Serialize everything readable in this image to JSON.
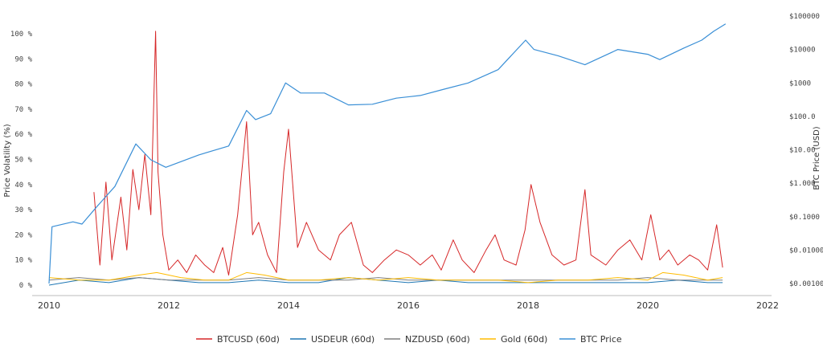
{
  "chart_data": {
    "type": "line",
    "title": "",
    "xlabel": "",
    "ylabel": "Price Volatility (%)",
    "y2label": "BTC Price (USD)",
    "xlim": [
      2010,
      2022
    ],
    "ylim": [
      0,
      100
    ],
    "y2lim": [
      0.001,
      100000
    ],
    "y2scale": "log",
    "x_ticks": [
      "2010",
      "2012",
      "2014",
      "2016",
      "2018",
      "2020",
      "2022"
    ],
    "y_ticks": [
      "0 %",
      "10 %",
      "20 %",
      "30 %",
      "40 %",
      "50 %",
      "60 %",
      "70 %",
      "80 %",
      "90 %",
      "100 %"
    ],
    "y2_ticks": [
      "$0.00100",
      "$0.01000",
      "$0.1000",
      "$1.000",
      "$10.00",
      "$100.0",
      "$1000",
      "$10000",
      "$100000"
    ],
    "legend_position": "bottom",
    "grid": false,
    "series": [
      {
        "name": "BTCUSD (60d)",
        "color": "#d62728",
        "axis": "left",
        "x": [
          2010.75,
          2010.85,
          2010.95,
          2011.05,
          2011.2,
          2011.3,
          2011.4,
          2011.5,
          2011.6,
          2011.7,
          2011.78,
          2011.82,
          2011.9,
          2012.0,
          2012.15,
          2012.3,
          2012.45,
          2012.6,
          2012.75,
          2012.9,
          2013.0,
          2013.15,
          2013.3,
          2013.4,
          2013.5,
          2013.65,
          2013.8,
          2013.92,
          2014.0,
          2014.15,
          2014.3,
          2014.5,
          2014.7,
          2014.85,
          2015.05,
          2015.25,
          2015.4,
          2015.6,
          2015.8,
          2016.0,
          2016.2,
          2016.4,
          2016.55,
          2016.75,
          2016.9,
          2017.1,
          2017.3,
          2017.45,
          2017.6,
          2017.8,
          2017.95,
          2018.05,
          2018.2,
          2018.4,
          2018.6,
          2018.8,
          2018.95,
          2019.05,
          2019.3,
          2019.5,
          2019.7,
          2019.9,
          2020.05,
          2020.2,
          2020.35,
          2020.5,
          2020.7,
          2020.85,
          2021.0,
          2021.15,
          2021.25
        ],
        "y": [
          37,
          8,
          41,
          10,
          35,
          14,
          46,
          30,
          52,
          28,
          101,
          45,
          20,
          6,
          10,
          5,
          12,
          8,
          5,
          15,
          4,
          28,
          65,
          20,
          25,
          12,
          5,
          45,
          62,
          15,
          25,
          14,
          10,
          20,
          25,
          8,
          5,
          10,
          14,
          12,
          8,
          12,
          6,
          18,
          10,
          5,
          14,
          20,
          10,
          8,
          22,
          40,
          25,
          12,
          8,
          10,
          38,
          12,
          8,
          14,
          18,
          10,
          28,
          10,
          14,
          8,
          12,
          10,
          6,
          24,
          7
        ]
      },
      {
        "name": "USDEUR (60d)",
        "color": "#1f77b4",
        "axis": "left",
        "x": [
          2010.0,
          2010.5,
          2011.0,
          2011.5,
          2012.0,
          2012.5,
          2013.0,
          2013.5,
          2014.0,
          2014.5,
          2015.0,
          2015.5,
          2016.0,
          2016.5,
          2017.0,
          2017.5,
          2018.0,
          2018.5,
          2019.0,
          2019.5,
          2020.0,
          2020.5,
          2021.0,
          2021.25
        ],
        "y": [
          0,
          2,
          1,
          3,
          2,
          1,
          1,
          2,
          1,
          1,
          3,
          2,
          1,
          2,
          1,
          1,
          1,
          1,
          1,
          1,
          1,
          2,
          1,
          1
        ]
      },
      {
        "name": "NZDUSD (60d)",
        "color": "#7f7f7f",
        "axis": "left",
        "x": [
          2010.0,
          2010.5,
          2011.0,
          2011.5,
          2012.0,
          2012.5,
          2013.0,
          2013.5,
          2014.0,
          2014.5,
          2015.0,
          2015.5,
          2016.0,
          2016.5,
          2017.0,
          2017.5,
          2018.0,
          2018.5,
          2019.0,
          2019.5,
          2020.0,
          2020.5,
          2021.0,
          2021.25
        ],
        "y": [
          2,
          3,
          2,
          3,
          2,
          2,
          2,
          3,
          2,
          2,
          2,
          3,
          2,
          2,
          2,
          2,
          2,
          2,
          2,
          2,
          3,
          2,
          2,
          2
        ]
      },
      {
        "name": "Gold (60d)",
        "color": "#ffbb00",
        "axis": "left",
        "x": [
          2010.0,
          2010.5,
          2011.0,
          2011.5,
          2011.8,
          2012.2,
          2012.6,
          2013.0,
          2013.3,
          2013.6,
          2014.0,
          2014.5,
          2015.0,
          2015.5,
          2016.0,
          2016.5,
          2017.0,
          2017.5,
          2018.0,
          2018.5,
          2019.0,
          2019.5,
          2020.0,
          2020.25,
          2020.6,
          2021.0,
          2021.25
        ],
        "y": [
          3,
          2,
          2,
          4,
          5,
          3,
          2,
          2,
          5,
          4,
          2,
          2,
          3,
          2,
          3,
          2,
          2,
          2,
          1,
          2,
          2,
          3,
          2,
          5,
          4,
          2,
          3
        ]
      },
      {
        "name": "BTC Price",
        "color": "#3a8fd6",
        "axis": "right",
        "x": [
          2010.0,
          2010.05,
          2010.4,
          2010.55,
          2010.8,
          2011.1,
          2011.45,
          2011.7,
          2011.95,
          2012.5,
          2013.0,
          2013.3,
          2013.45,
          2013.7,
          2013.95,
          2014.2,
          2014.6,
          2015.0,
          2015.4,
          2015.8,
          2016.2,
          2016.6,
          2017.0,
          2017.5,
          2017.96,
          2018.1,
          2018.5,
          2018.95,
          2019.5,
          2020.0,
          2020.2,
          2020.6,
          2020.9,
          2021.1,
          2021.3
        ],
        "y": [
          0.001,
          0.05,
          0.07,
          0.06,
          0.2,
          0.8,
          15,
          5,
          3,
          7,
          13,
          150,
          80,
          120,
          1000,
          500,
          500,
          220,
          230,
          350,
          420,
          650,
          1000,
          2500,
          19000,
          10000,
          6500,
          3500,
          10000,
          7200,
          5000,
          11000,
          19000,
          35000,
          58000
        ]
      }
    ]
  }
}
